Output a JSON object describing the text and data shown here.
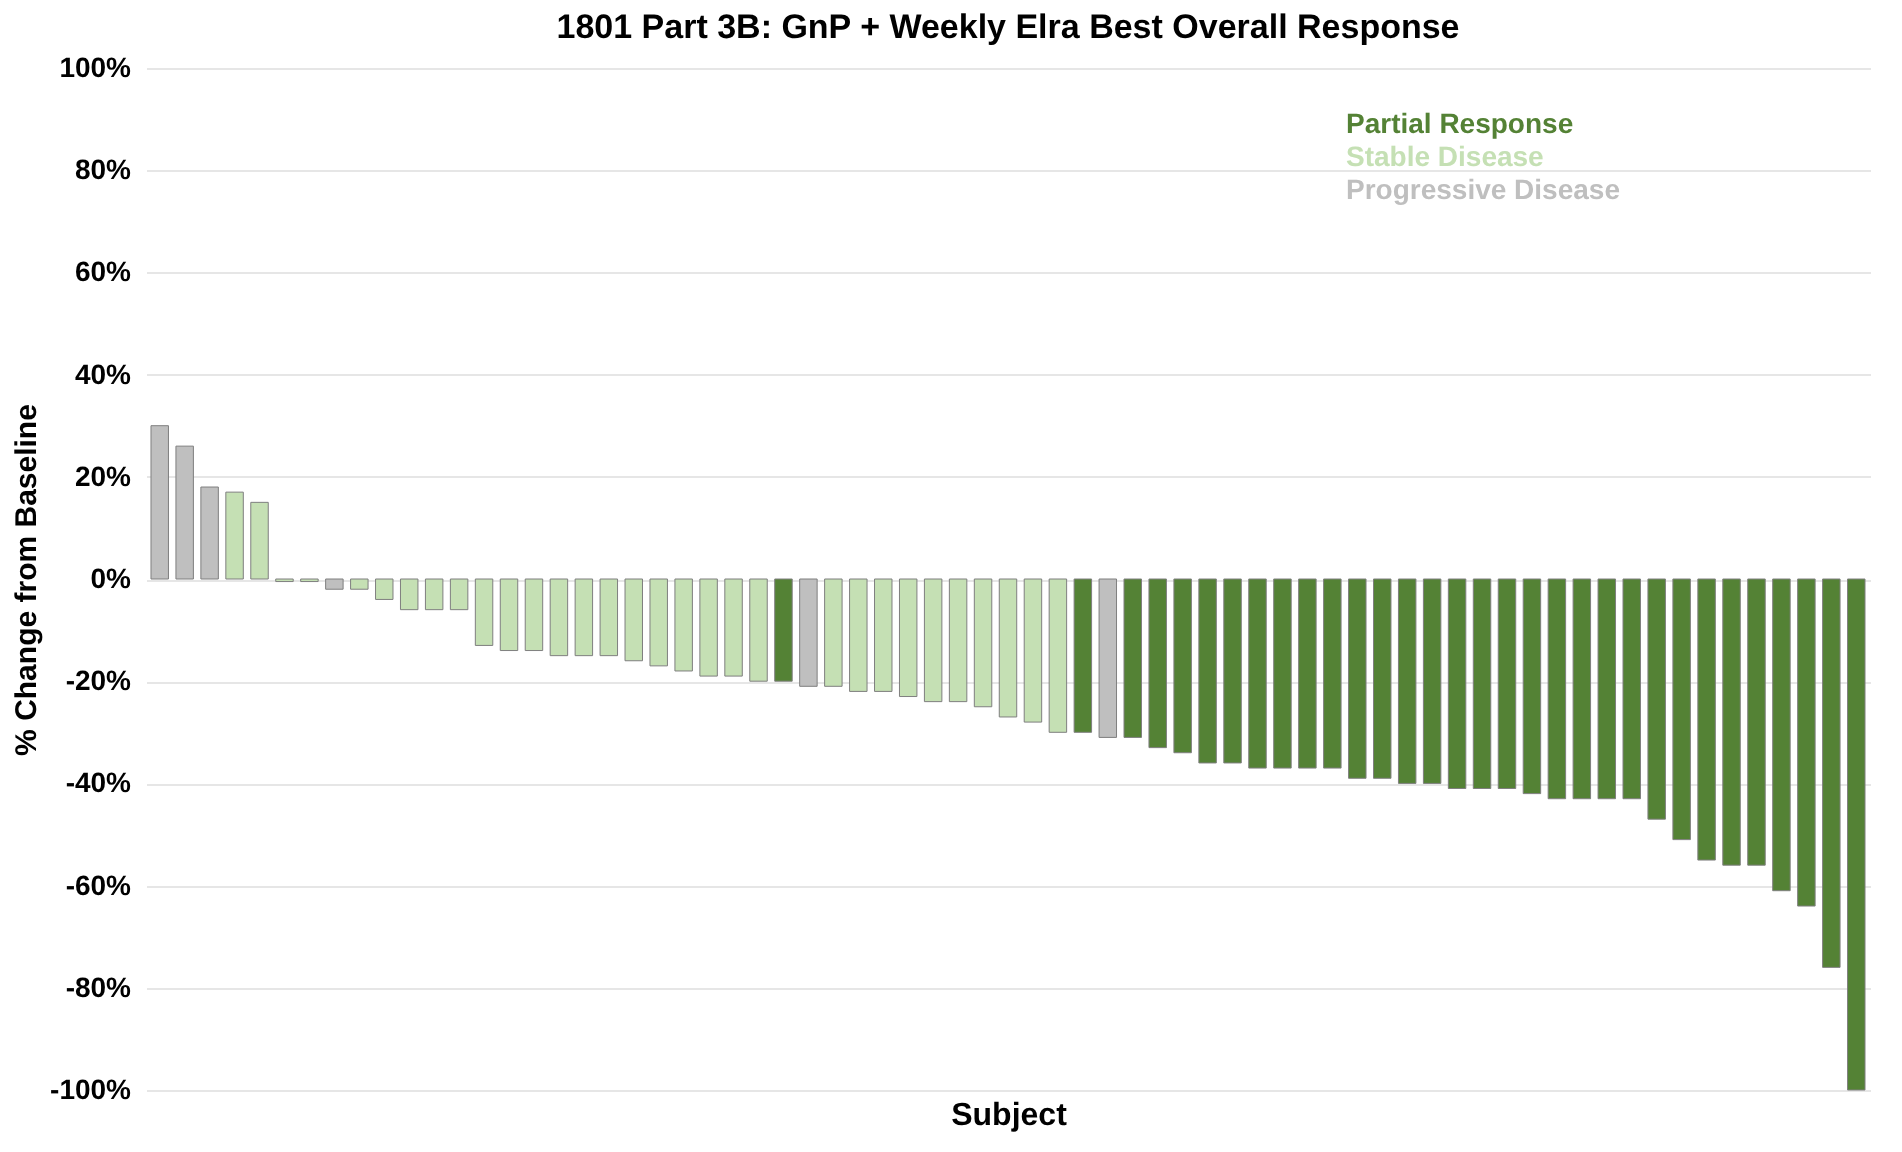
{
  "chart_data": {
    "type": "bar",
    "title": "1801 Part 3B: GnP + Weekly Elra Best Overall Response",
    "xlabel": "Subject",
    "ylabel": "% Change from Baseline",
    "categories": [
      null,
      null,
      null,
      null,
      null,
      null,
      null,
      null,
      null,
      null,
      null,
      null,
      null,
      null,
      null,
      null,
      null,
      null,
      null,
      null,
      null,
      null,
      null,
      null,
      null,
      null,
      null,
      null,
      null,
      null,
      null,
      null,
      null,
      null,
      null,
      null,
      null,
      null,
      null,
      null,
      null,
      null,
      null,
      null,
      null,
      null,
      null,
      null,
      null,
      null,
      null,
      null,
      null,
      null,
      null,
      null,
      null,
      null,
      null,
      null,
      null,
      null,
      null,
      null,
      null,
      null,
      null,
      null,
      null
    ],
    "series": [
      {
        "name": "Partial Response",
        "color": "#548235",
        "values": [
          null,
          null,
          null,
          null,
          null,
          null,
          null,
          null,
          null,
          null,
          null,
          null,
          null,
          null,
          null,
          null,
          null,
          null,
          null,
          null,
          null,
          null,
          null,
          null,
          null,
          -20,
          null,
          null,
          null,
          null,
          null,
          null,
          null,
          null,
          null,
          null,
          null,
          -30,
          null,
          -31,
          -33,
          -34,
          -36,
          -36,
          -37,
          -37,
          -37,
          -37,
          -39,
          -39,
          -40,
          -40,
          -41,
          -41,
          -41,
          -42,
          -43,
          -43,
          -43,
          -43,
          -47,
          -51,
          -55,
          -56,
          -56,
          -61,
          -64,
          -76,
          -100
        ]
      },
      {
        "name": "Stable Disease",
        "color": "#c5e0b4",
        "values": [
          null,
          null,
          null,
          17,
          15,
          -0.5,
          -0.5,
          null,
          -2,
          -4,
          -6,
          -6,
          -6,
          -13,
          -14,
          -14,
          -15,
          -15,
          -15,
          -16,
          -17,
          -18,
          -19,
          -19,
          -20,
          null,
          null,
          -21,
          -22,
          -22,
          -23,
          -24,
          -24,
          -25,
          -27,
          -28,
          -30,
          null,
          null,
          null,
          null,
          null,
          null,
          null,
          null,
          null,
          null,
          null,
          null,
          null,
          null,
          null,
          null,
          null,
          null,
          null,
          null,
          null,
          null,
          null,
          null,
          null,
          null,
          null,
          null,
          null,
          null,
          null,
          null
        ]
      },
      {
        "name": "Progressive Disease",
        "color": "#bfbfbf",
        "values": [
          30,
          26,
          18,
          null,
          null,
          null,
          null,
          -2,
          null,
          null,
          null,
          null,
          null,
          null,
          null,
          null,
          null,
          null,
          null,
          null,
          null,
          null,
          null,
          null,
          null,
          null,
          -21,
          null,
          null,
          null,
          null,
          null,
          null,
          null,
          null,
          null,
          null,
          null,
          -31,
          null,
          null,
          null,
          null,
          null,
          null,
          null,
          null,
          null,
          null,
          null,
          null,
          null,
          null,
          null,
          null,
          null,
          null,
          null,
          null,
          null,
          null,
          null,
          null,
          null,
          null,
          null,
          null,
          null,
          null
        ]
      }
    ],
    "ylim": [
      -100,
      100
    ],
    "yticks": [
      {
        "value": -100,
        "label": "-100%"
      },
      {
        "value": -80,
        "label": "-80%"
      },
      {
        "value": -60,
        "label": "-60%"
      },
      {
        "value": -40,
        "label": "-40%"
      },
      {
        "value": -20,
        "label": "-20%"
      },
      {
        "value": 0,
        "label": "0%"
      },
      {
        "value": 20,
        "label": "20%"
      },
      {
        "value": 40,
        "label": "40%"
      },
      {
        "value": 60,
        "label": "60%"
      },
      {
        "value": 80,
        "label": "80%"
      },
      {
        "value": 100,
        "label": "100%"
      }
    ],
    "grid": "y",
    "legend": "top right",
    "tick_labels": "y"
  }
}
